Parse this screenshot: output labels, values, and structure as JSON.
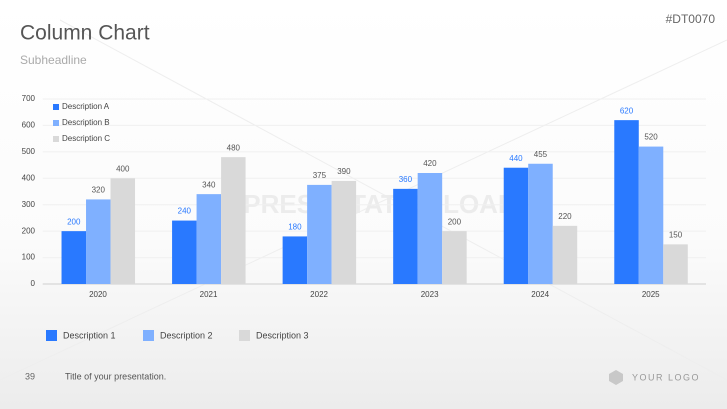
{
  "slide": {
    "title": "Column Chart",
    "subtitle": "Subheadline",
    "code": "#DT0070",
    "watermark": "PRESENTATIONLOAD",
    "legend_labels": [
      "Description 1",
      "Description 2",
      "Description 3"
    ],
    "page_number": "39",
    "footer": "Title of your presentation.",
    "logo": "YOUR LOGO"
  },
  "chart_data": {
    "type": "bar",
    "categories": [
      "2020",
      "2021",
      "2022",
      "2023",
      "2024",
      "2025"
    ],
    "series": [
      {
        "name": "Description A",
        "color": "#2979ff",
        "values": [
          200,
          240,
          180,
          360,
          440,
          620
        ]
      },
      {
        "name": "Description B",
        "color": "#7fb0ff",
        "values": [
          320,
          340,
          375,
          420,
          455,
          520
        ]
      },
      {
        "name": "Description C",
        "color": "#d9d9d9",
        "values": [
          400,
          480,
          390,
          200,
          220,
          150
        ]
      }
    ],
    "ylim": [
      0,
      700
    ],
    "yticks": [
      0,
      100,
      200,
      300,
      400,
      500,
      600,
      700
    ],
    "grid": true,
    "legend": "top-left"
  }
}
